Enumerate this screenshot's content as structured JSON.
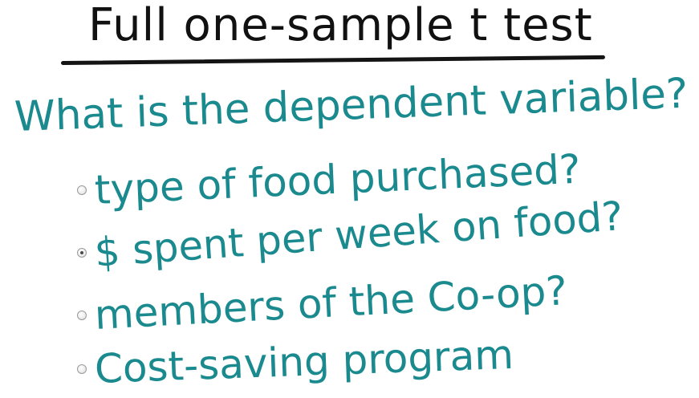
{
  "title": "Full one-sample t test",
  "question": "What is the dependent variable?",
  "options": [
    {
      "label": "type of food purchased?",
      "selected": false
    },
    {
      "label": "$ spent per week on food?",
      "selected": true
    },
    {
      "label": "members of the Co-op?",
      "selected": false
    },
    {
      "label": "Cost-saving program",
      "selected": false
    }
  ],
  "colors": {
    "ink_black": "#111111",
    "ink_teal": "#1a8a8f"
  }
}
